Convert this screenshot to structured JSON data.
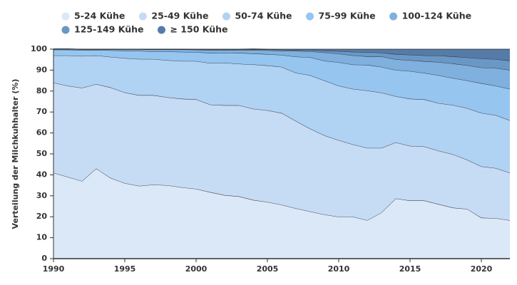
{
  "chart_data": {
    "type": "stacked_area",
    "y_label": "Verteilung der Milchkuhhalter (%)",
    "x": [
      1990,
      1991,
      1992,
      1993,
      1994,
      1995,
      1996,
      1997,
      1998,
      1999,
      2000,
      2001,
      2002,
      2003,
      2004,
      2005,
      2006,
      2007,
      2008,
      2009,
      2010,
      2011,
      2012,
      2013,
      2014,
      2015,
      2016,
      2017,
      2018,
      2019,
      2020,
      2021,
      2022
    ],
    "xlim": [
      1990,
      2022
    ],
    "xticks": [
      1990,
      1995,
      2000,
      2005,
      2010,
      2015,
      2020
    ],
    "ylim": [
      0,
      100
    ],
    "yticks": [
      0,
      10,
      20,
      30,
      40,
      50,
      60,
      70,
      80,
      90,
      100
    ],
    "legend": "top-left",
    "series": [
      {
        "name": "5-24 Kühe",
        "color": "#dbe8f7",
        "values": [
          41,
          39,
          37,
          43,
          38.5,
          36,
          34.7,
          35.3,
          35,
          34,
          33.3,
          31.7,
          30.3,
          29.7,
          28,
          27,
          25.7,
          24,
          22.5,
          21,
          20,
          20,
          18.3,
          22,
          28.7,
          27.7,
          27.7,
          26,
          24.3,
          23.7,
          19.5,
          19.3,
          18.3
        ]
      },
      {
        "name": "25-49 Kühe",
        "color": "#c6dbf4",
        "values": [
          43,
          43.5,
          44.5,
          40.3,
          43.2,
          43.3,
          43.3,
          42.7,
          42,
          42.3,
          42.7,
          41.8,
          42.9,
          43.5,
          43.5,
          43.8,
          43.8,
          41.7,
          39.5,
          37.8,
          36.5,
          34.5,
          34.5,
          30.8,
          26.8,
          26.1,
          25.8,
          25.5,
          25.5,
          23.5,
          24.5,
          23.9,
          22.7
        ]
      },
      {
        "name": "50-74 Kühe",
        "color": "#b0d2f3",
        "values": [
          13,
          14.5,
          15.2,
          13.7,
          14.6,
          16.4,
          17.3,
          17.3,
          17.7,
          18,
          18.3,
          19.8,
          20.3,
          19.8,
          21.2,
          21.4,
          22,
          23,
          25.5,
          26.2,
          26,
          26.5,
          27.4,
          26.4,
          22,
          22.5,
          22.5,
          22.7,
          23.5,
          24.6,
          25.5,
          25.3,
          25
        ]
      },
      {
        "name": "75-99 Kühe",
        "color": "#96c5f0",
        "values": [
          2.7,
          2.7,
          2.9,
          2.6,
          3.1,
          3.6,
          3.8,
          3.6,
          4.1,
          4.4,
          4.2,
          4.9,
          4.8,
          5.2,
          5.2,
          5.4,
          5.7,
          7.7,
          8.6,
          9.4,
          11.2,
          11.6,
          12.3,
          12.3,
          12.5,
          13.2,
          12.6,
          13.3,
          12.9,
          13.2,
          14.2,
          14,
          15
        ]
      },
      {
        "name": "100-124 Kühe",
        "color": "#7fb0de",
        "values": [
          0.3,
          0.3,
          0.3,
          0.3,
          0.5,
          0.6,
          0.8,
          0.9,
          1,
          1.1,
          1.2,
          1.4,
          1.3,
          1.3,
          1.6,
          1.8,
          2.1,
          2.7,
          2.8,
          4,
          4.1,
          4.4,
          4,
          5,
          5.1,
          5.2,
          5.6,
          6.3,
          6.9,
          7.3,
          7.5,
          8.5,
          9
        ]
      },
      {
        "name": "125-149 Kühe",
        "color": "#6b97c4",
        "values": [
          0.1,
          0.1,
          0.1,
          0.1,
          0.1,
          0.1,
          0.1,
          0.2,
          0.2,
          0.2,
          0.2,
          0.3,
          0.3,
          0.4,
          0.4,
          0.4,
          0.4,
          0.5,
          0.6,
          0.9,
          1.2,
          1.7,
          2,
          1.8,
          2.5,
          2.6,
          2.8,
          3.1,
          3.4,
          3.7,
          4.3,
          4.2,
          4.5
        ]
      },
      {
        "name": "≥ 150 Kühe",
        "color": "#557ca8",
        "values": [
          0,
          0,
          0,
          0,
          0,
          0,
          0,
          0,
          0,
          0,
          0.1,
          0.1,
          0.1,
          0.1,
          0.2,
          0.2,
          0.3,
          0.4,
          0.5,
          0.7,
          1,
          1.3,
          1.5,
          1.7,
          2.4,
          2.7,
          3,
          3.1,
          3.5,
          4,
          4.5,
          4.8,
          5.5
        ]
      }
    ]
  }
}
